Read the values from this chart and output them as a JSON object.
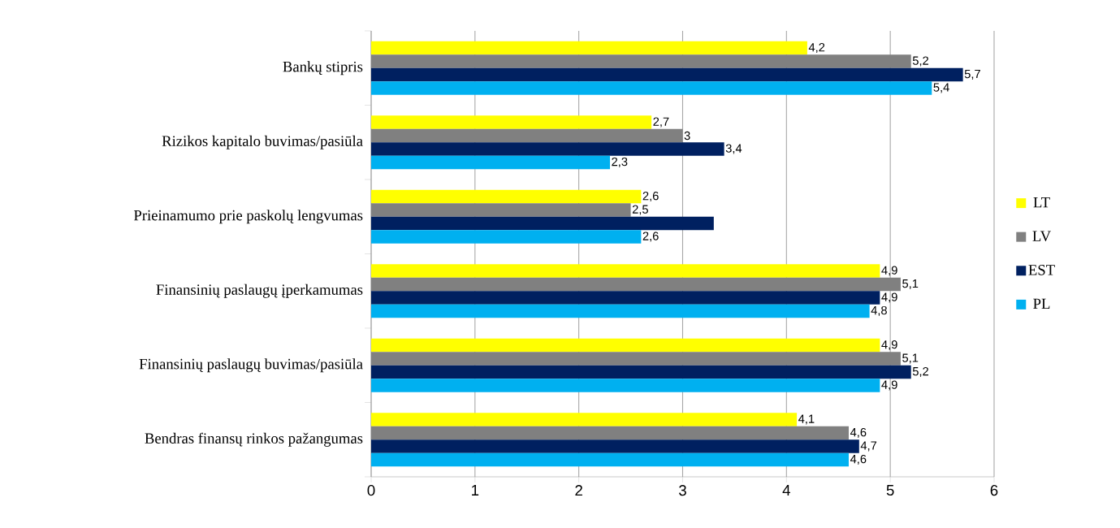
{
  "chart_data": {
    "type": "bar",
    "orientation": "horizontal",
    "categories": [
      "Bankų stipris",
      "Rizikos kapitalo buvimas/pasiūla",
      "Prieinamumo prie paskolų lengvumas",
      "Finansinių paslaugų įperkamumas",
      "Finansinių paslaugų buvimas/pasiūla",
      "Bendras finansų rinkos pažangumas"
    ],
    "series": [
      {
        "name": "LT",
        "color": "#ffff00",
        "values": [
          4.2,
          2.7,
          2.6,
          4.9,
          4.9,
          4.1
        ],
        "value_labels": [
          "4,2",
          "2,7",
          "2,6",
          "4,9",
          "4,9",
          "4,1"
        ]
      },
      {
        "name": "LV",
        "color": "#808080",
        "values": [
          5.2,
          3,
          2.5,
          5.1,
          5.1,
          4.6
        ],
        "value_labels": [
          "5,2",
          "3",
          "2,5",
          "5,1",
          "5,1",
          "4,6"
        ]
      },
      {
        "name": "EST",
        "color": "#002060",
        "values": [
          5.7,
          3.4,
          3.3,
          4.9,
          5.2,
          4.7
        ],
        "value_labels": [
          "5,7",
          "3,4",
          null,
          "4,9",
          "5,2",
          "4,7"
        ]
      },
      {
        "name": "PL",
        "color": "#00b0f0",
        "values": [
          5.4,
          2.3,
          2.6,
          4.8,
          4.9,
          4.6
        ],
        "value_labels": [
          "5,4",
          "2,3",
          "2,6",
          "4,8",
          "4,9",
          "4,6"
        ]
      }
    ],
    "xlim": [
      0,
      6
    ],
    "xticks": [
      0,
      1,
      2,
      3,
      4,
      5,
      6
    ],
    "grid": "x",
    "legend": "right"
  }
}
